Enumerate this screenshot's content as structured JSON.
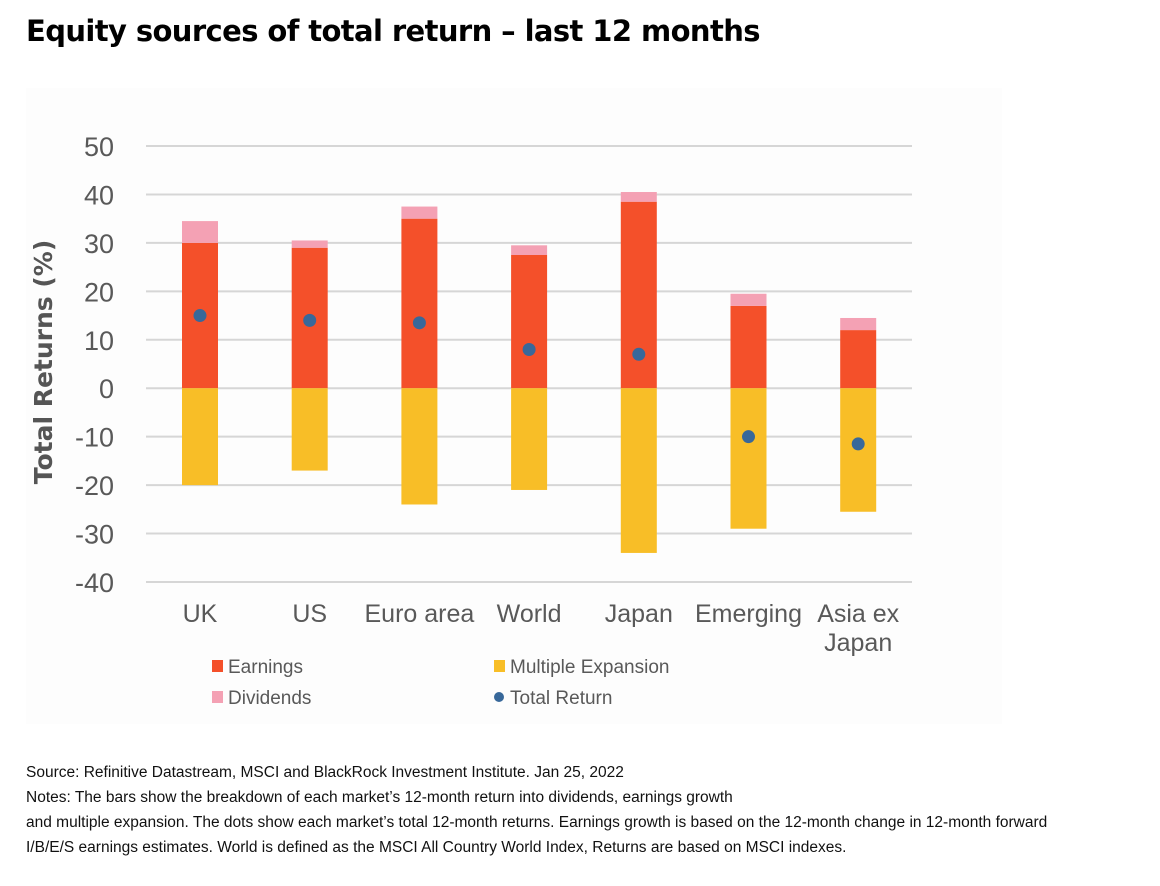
{
  "title": "Equity sources of total return – last 12 months",
  "chart_data": {
    "type": "bar",
    "stacked": true,
    "ylabel": "Total Returns (%)",
    "xlabel": "",
    "ylim": [
      -40,
      50
    ],
    "yticks": [
      50,
      40,
      30,
      20,
      10,
      0,
      -10,
      -20,
      -30,
      -40
    ],
    "grid": true,
    "categories": [
      "UK",
      "US",
      "Euro area",
      "World",
      "Japan",
      "Emerging",
      "Asia ex Japan"
    ],
    "category_lines": [
      [
        "UK"
      ],
      [
        "US"
      ],
      [
        "Euro area"
      ],
      [
        "World"
      ],
      [
        "Japan"
      ],
      [
        "Emerging"
      ],
      [
        "Asia ex",
        "Japan"
      ]
    ],
    "series": [
      {
        "name": "Earnings",
        "kind": "bar",
        "color": "#f4502a",
        "values": [
          30,
          29,
          35,
          27.5,
          38.5,
          17,
          12
        ]
      },
      {
        "name": "Dividends",
        "kind": "bar",
        "color": "#f4a1b4",
        "values": [
          4.5,
          1.5,
          2.5,
          2,
          2,
          2.5,
          2.5
        ]
      },
      {
        "name": "Multiple Expansion",
        "kind": "bar",
        "color": "#f8be27",
        "values": [
          -20,
          -17,
          -24,
          -21,
          -34,
          -29,
          -25.5
        ]
      },
      {
        "name": "Total Return",
        "kind": "dot",
        "color": "#38689a",
        "values": [
          15,
          14,
          13.5,
          8,
          7,
          -10,
          -11.5
        ]
      }
    ],
    "legend": [
      {
        "label": "Earnings",
        "color": "#f4502a",
        "marker": "square"
      },
      {
        "label": "Multiple Expansion",
        "color": "#f8be27",
        "marker": "square"
      },
      {
        "label": "Dividends",
        "color": "#f4a1b4",
        "marker": "square"
      },
      {
        "label": "Total Return",
        "color": "#38689a",
        "marker": "circle"
      }
    ],
    "legend_position": "bottom"
  },
  "notes": {
    "line1": "Source: Refinitive Datastream, MSCI and BlackRock Investment Institute. Jan 25, 2022",
    "line2": "Notes: The bars show the breakdown of each market’s 12-month return into dividends, earnings growth",
    "line3": "and multiple expansion. The dots show each market’s total 12-month returns. Earnings growth is based on the 12-month change in 12-month forward",
    "line4": "I/B/E/S earnings estimates. World is defined as the MSCI All Country World Index, Returns are based on MSCI indexes."
  }
}
